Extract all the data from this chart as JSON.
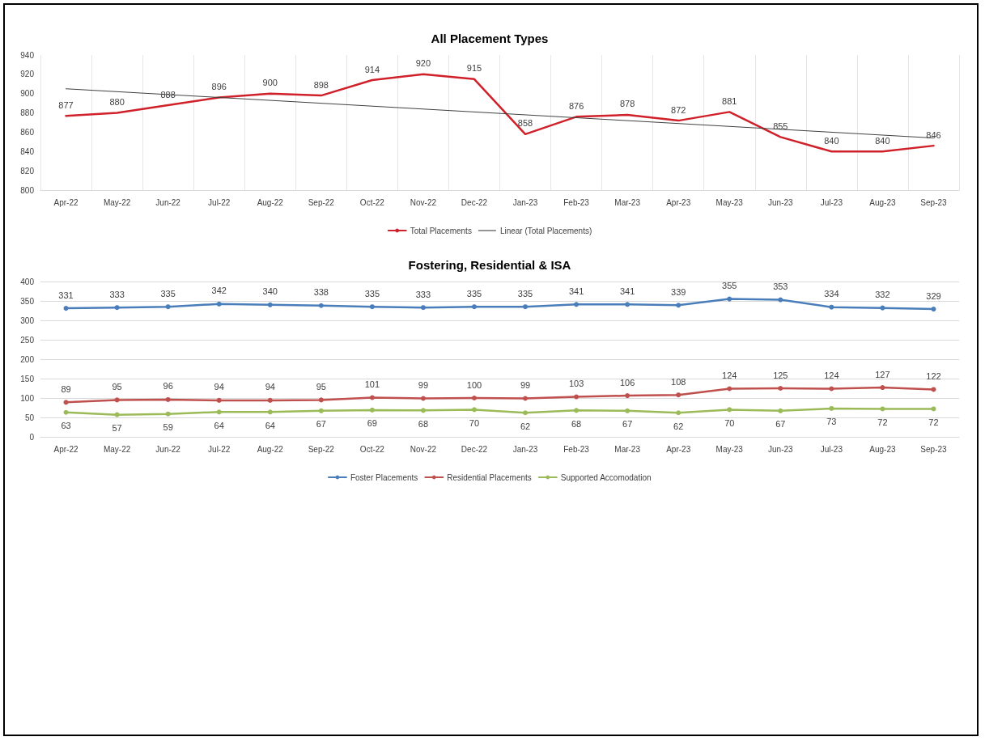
{
  "chart_data": [
    {
      "type": "line",
      "title": "All Placement Types",
      "categories": [
        "Apr-22",
        "May-22",
        "Jun-22",
        "Jul-22",
        "Aug-22",
        "Sep-22",
        "Oct-22",
        "Nov-22",
        "Dec-22",
        "Jan-23",
        "Feb-23",
        "Mar-23",
        "Apr-23",
        "May-23",
        "Jun-23",
        "Jul-23",
        "Aug-23",
        "Sep-23"
      ],
      "series": [
        {
          "name": "Total Placements",
          "color": "#d0202a",
          "values": [
            877,
            880,
            888,
            896,
            900,
            898,
            914,
            920,
            915,
            858,
            876,
            878,
            872,
            881,
            855,
            840,
            840,
            846
          ],
          "value_labels": [
            "877",
            "880",
            "888",
            "896",
            "900",
            "898",
            "914",
            "920",
            "915",
            "858",
            "876",
            "878",
            "872",
            "881",
            "855",
            "840",
            "840",
            "846"
          ]
        },
        {
          "name": "Linear (Total Placements)",
          "color": "#404040",
          "x": [
            "Apr-22",
            "Sep-23"
          ],
          "values": [
            905,
            854
          ]
        }
      ],
      "ylim": [
        800,
        940
      ],
      "yticks": [
        800,
        820,
        840,
        860,
        880,
        900,
        920,
        940
      ],
      "grid": "x",
      "legend": "bottom",
      "marker": "none",
      "line_style": "solid"
    },
    {
      "type": "line",
      "title": "Fostering, Residential & ISA",
      "categories": [
        "Apr-22",
        "May-22",
        "Jun-22",
        "Jul-22",
        "Aug-22",
        "Sep-22",
        "Oct-22",
        "Nov-22",
        "Dec-22",
        "Jan-23",
        "Feb-23",
        "Mar-23",
        "Apr-23",
        "May-23",
        "Jun-23",
        "Jul-23",
        "Aug-23",
        "Sep-23"
      ],
      "series": [
        {
          "name": "Foster Placements",
          "color": "#4a7ebb",
          "values": [
            331,
            333,
            335,
            342,
            340,
            338,
            335,
            333,
            335,
            335,
            341,
            341,
            339,
            355,
            353,
            334,
            332,
            329
          ]
        },
        {
          "name": "Residential Placements",
          "color": "#c0504d",
          "values": [
            89,
            95,
            96,
            94,
            94,
            95,
            101,
            99,
            100,
            99,
            103,
            106,
            108,
            124,
            125,
            124,
            127,
            122
          ]
        },
        {
          "name": "Supported Accomodation",
          "color": "#9bbb59",
          "values": [
            63,
            57,
            59,
            64,
            64,
            67,
            69,
            68,
            70,
            62,
            68,
            67,
            62,
            70,
            67,
            73,
            72,
            72
          ]
        }
      ],
      "ylim": [
        0,
        400
      ],
      "yticks": [
        0,
        50,
        100,
        150,
        200,
        250,
        300,
        350,
        400
      ],
      "grid": "y",
      "legend": "bottom",
      "marker": "circle",
      "line_style": "solid",
      "data_labels": true
    }
  ]
}
